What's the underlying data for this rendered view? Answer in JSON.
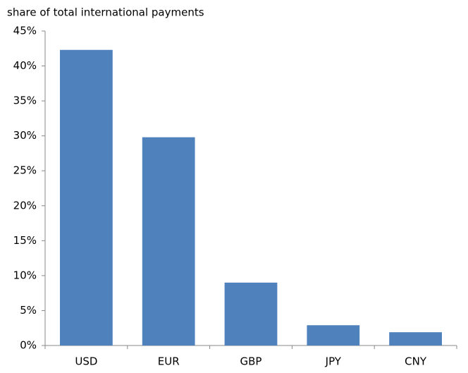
{
  "chart_data": {
    "type": "bar",
    "ylabel": "share of total international payments",
    "categories": [
      "USD",
      "EUR",
      "GBP",
      "JPY",
      "CNY"
    ],
    "values": [
      42.3,
      29.8,
      9.0,
      2.9,
      1.9
    ],
    "color": "#4f81bd",
    "ylim": [
      0,
      45
    ],
    "yticks": [
      {
        "value": 0,
        "label": "0%"
      },
      {
        "value": 5,
        "label": "5%"
      },
      {
        "value": 10,
        "label": "10%"
      },
      {
        "value": 15,
        "label": "15%"
      },
      {
        "value": 20,
        "label": "20%"
      },
      {
        "value": 25,
        "label": "25%"
      },
      {
        "value": 30,
        "label": "30%"
      },
      {
        "value": 35,
        "label": "35%"
      },
      {
        "value": 40,
        "label": "40%"
      },
      {
        "value": 45,
        "label": "45%"
      }
    ],
    "grid": false
  }
}
